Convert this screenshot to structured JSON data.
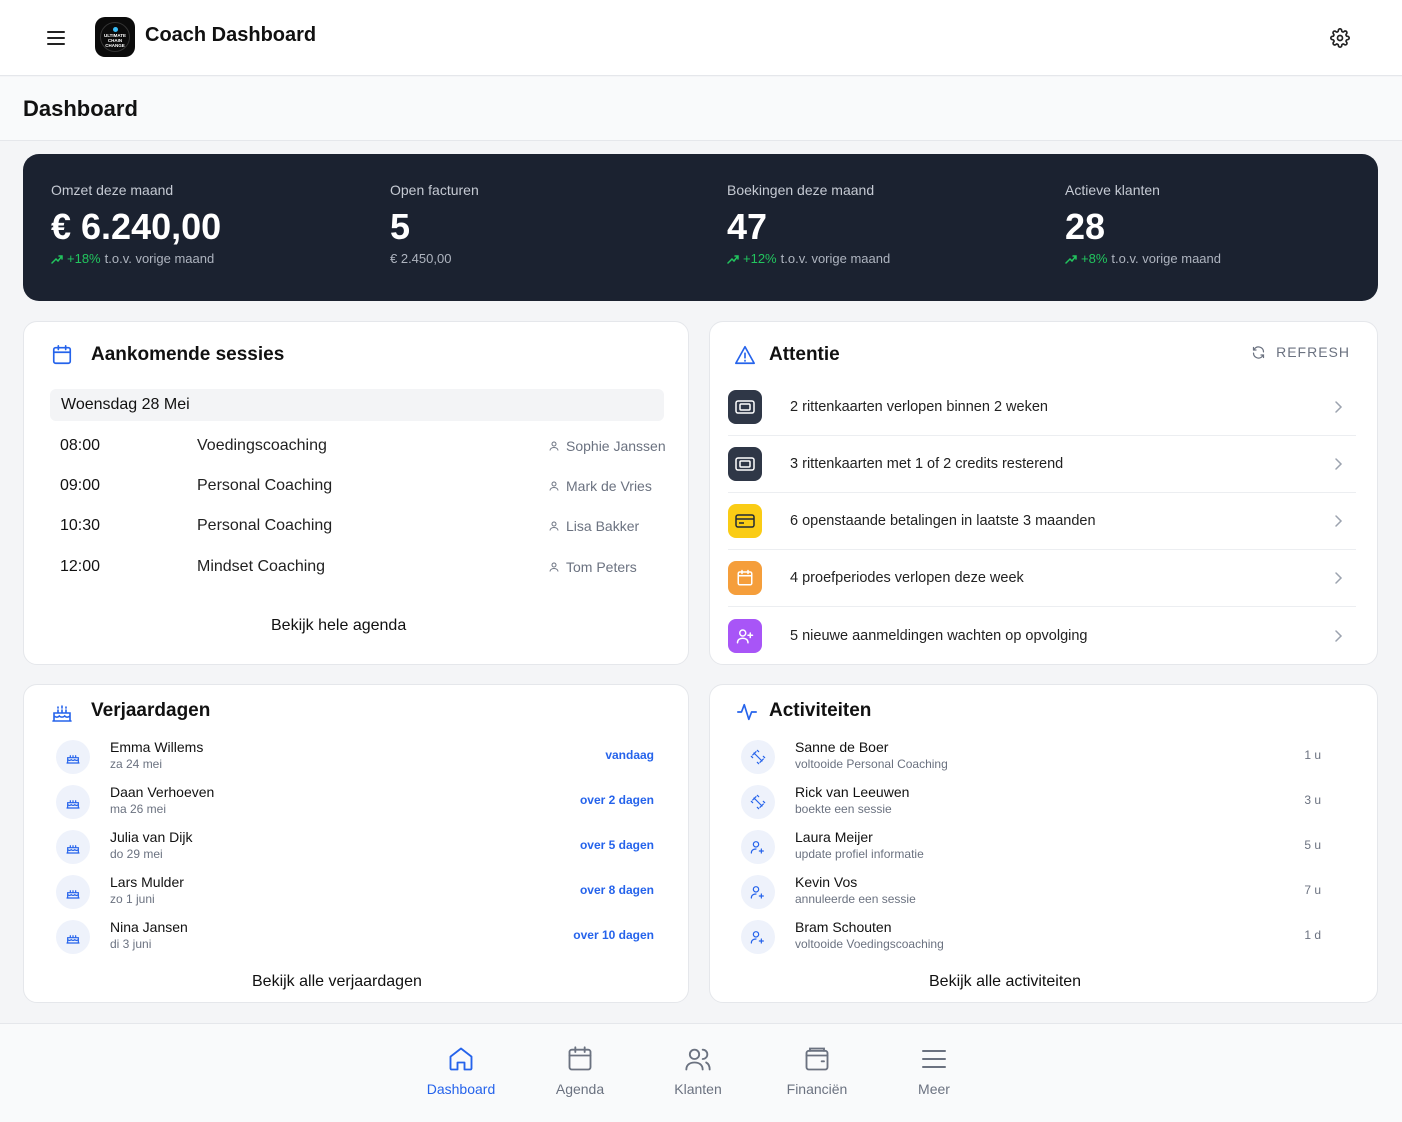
{
  "header": {
    "app_title": "Coach Dashboard",
    "logo_text": "ULTIMATE CHAIN CHANGE",
    "menu_icon": "hamburger-icon",
    "settings_icon": "gear-icon"
  },
  "page": {
    "title": "Dashboard"
  },
  "stats": [
    {
      "label": "Omzet deze maand",
      "value": "€ 6.240,00",
      "change": "+18%",
      "change_suffix": "t.o.v. vorige maand",
      "sub": ""
    },
    {
      "label": "Open facturen",
      "value": "5",
      "change": "",
      "change_suffix": "",
      "sub": "€ 2.450,00"
    },
    {
      "label": "Boekingen deze maand",
      "value": "47",
      "change": "+12%",
      "change_suffix": "t.o.v. vorige maand",
      "sub": ""
    },
    {
      "label": "Actieve klanten",
      "value": "28",
      "change": "+8%",
      "change_suffix": "t.o.v. vorige maand",
      "sub": ""
    }
  ],
  "sessions": {
    "title": "Aankomende sessies",
    "date_label": "Woensdag 28 Mei",
    "items": [
      {
        "time": "08:00",
        "type": "Voedingscoaching",
        "client": "Sophie Janssen"
      },
      {
        "time": "09:00",
        "type": "Personal Coaching",
        "client": "Mark de Vries"
      },
      {
        "time": "10:30",
        "type": "Personal Coaching",
        "client": "Lisa Bakker"
      },
      {
        "time": "12:00",
        "type": "Mindset Coaching",
        "client": "Tom Peters"
      }
    ],
    "link": "Bekijk hele agenda"
  },
  "attention": {
    "title": "Attentie",
    "refresh_label": "REFRESH",
    "items": [
      {
        "count": "2",
        "text": "rittenkaarten verlopen binnen 2 weken",
        "icon": "ticket-icon",
        "color": "#2f3747"
      },
      {
        "count": "3",
        "text": "rittenkaarten met 1 of 2 credits resterend",
        "icon": "ticket-icon",
        "color": "#2f3747"
      },
      {
        "count": "6",
        "text": "openstaande betalingen in laatste 3 maanden",
        "icon": "credit-card-icon",
        "color": "#facc15"
      },
      {
        "count": "4",
        "text": "proefperiodes verlopen deze week",
        "icon": "calendar-icon",
        "color": "#f59e3b"
      },
      {
        "count": "5",
        "text": "nieuwe aanmeldingen wachten op opvolging",
        "icon": "user-plus-icon",
        "color": "#a855f7"
      }
    ]
  },
  "birthdays": {
    "title": "Verjaardagen",
    "items": [
      {
        "name": "Emma Willems",
        "date": "za 24 mei",
        "when": "vandaag"
      },
      {
        "name": "Daan Verhoeven",
        "date": "ma 26 mei",
        "when": "over 2 dagen"
      },
      {
        "name": "Julia van Dijk",
        "date": "do 29 mei",
        "when": "over 5 dagen"
      },
      {
        "name": "Lars Mulder",
        "date": "zo 1 juni",
        "when": "over 8 dagen"
      },
      {
        "name": "Nina Jansen",
        "date": "di 3 juni",
        "when": "over 10 dagen"
      }
    ],
    "link": "Bekijk alle verjaardagen"
  },
  "activities": {
    "title": "Activiteiten",
    "items": [
      {
        "name": "Sanne de Boer",
        "action": "voltooide Personal Coaching",
        "ago": "1 u",
        "icon": "dumbbell-icon"
      },
      {
        "name": "Rick van Leeuwen",
        "action": "boekte een sessie",
        "ago": "3 u",
        "icon": "dumbbell-icon"
      },
      {
        "name": "Laura Meijer",
        "action": "update profiel informatie",
        "ago": "5 u",
        "icon": "user-plus-icon"
      },
      {
        "name": "Kevin Vos",
        "action": "annuleerde een sessie",
        "ago": "7 u",
        "icon": "user-plus-icon"
      },
      {
        "name": "Bram Schouten",
        "action": "voltooide Voedingscoaching",
        "ago": "1 d",
        "icon": "user-plus-icon"
      }
    ],
    "link": "Bekijk alle activiteiten"
  },
  "nav": [
    {
      "label": "Dashboard",
      "icon": "home-icon",
      "active": true
    },
    {
      "label": "Agenda",
      "icon": "calendar-icon",
      "active": false
    },
    {
      "label": "Klanten",
      "icon": "users-icon",
      "active": false
    },
    {
      "label": "Financiën",
      "icon": "wallet-icon",
      "active": false
    },
    {
      "label": "Meer",
      "icon": "menu-icon",
      "active": false
    }
  ],
  "colors": {
    "accent": "#2563eb",
    "positive": "#22c55e",
    "dark_panel": "#1b2230"
  }
}
